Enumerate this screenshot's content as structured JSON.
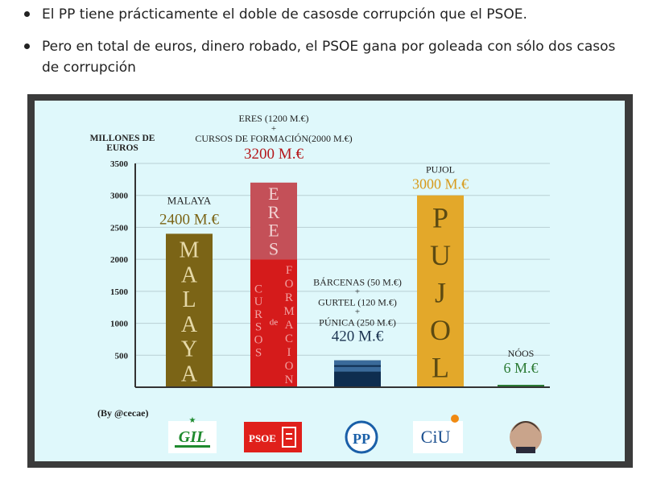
{
  "bullets": [
    "El PP tiene prácticamente el doble de casosde corrupción que el PSOE.",
    "Pero en total de euros, dinero robado, el PSOE gana por goleada con sólo dos casos de corrupción"
  ],
  "colors": {
    "malaya": "#7b6416",
    "eres": "#c45058",
    "cursos": "#d51b1b",
    "pp_dark": "#0e2d4f",
    "pp_light": "#3a6a9a",
    "pujol": "#e3a82a",
    "noos": "#2b7a34",
    "malaya_text": "#7b6416",
    "eres_text": "#b5181c",
    "pujol_text": "#d79a1a",
    "pp_text": "#1b3350",
    "noos_text": "#2b7a34"
  },
  "chart_data": {
    "type": "bar",
    "ylabel": "MILLONES DE EUROS",
    "ylim": [
      0,
      3500
    ],
    "yticks": [
      "3500",
      "3000",
      "2500",
      "2000",
      "1500",
      "1000",
      "500"
    ],
    "categories": [
      "GIL",
      "PSOE",
      "PP",
      "CiU",
      "Nóos"
    ],
    "values": [
      2400,
      3200,
      420,
      3000,
      6
    ],
    "stacks": {
      "psoe": [
        {
          "name": "CURSOS DE FORMACIÓN",
          "value": 2000
        },
        {
          "name": "ERES",
          "value": 1200
        }
      ]
    },
    "bars": [
      {
        "key": "malaya",
        "label": "MALAYA",
        "amount": "2400 M.€",
        "letters": [
          "M",
          "A",
          "L",
          "A",
          "Y",
          "A"
        ]
      },
      {
        "key": "psoe",
        "top_line1": "ERES (1200 M.€)",
        "plus": "+",
        "top_line2": "CURSOS DE FORMACIÓN(2000 M.€)",
        "amount": "3200 M.€",
        "eres_letters": [
          "E",
          "R",
          "E",
          "S"
        ],
        "cursos_letters": [
          "C",
          "U",
          "R",
          "S",
          "O",
          "S"
        ],
        "de": "de",
        "formacion_letters": [
          "F",
          "O",
          "R",
          "M",
          "A",
          "C",
          "I",
          "O",
          "N"
        ]
      },
      {
        "key": "pp",
        "line1": "BÁRCENAS (50 M.€)",
        "plus1": "+",
        "line2": "GURTEL (120 M.€)",
        "plus2": "+",
        "line3": "PÚNICA (250 M.€)",
        "amount": "420 M.€"
      },
      {
        "key": "pujol",
        "label": "PUJOL",
        "amount": "3000 M.€",
        "letters": [
          "P",
          "U",
          "J",
          "O",
          "L"
        ]
      },
      {
        "key": "noos",
        "label": "NÓOS",
        "amount": "6 M.€"
      }
    ],
    "credit": "(By @cecae)",
    "logos": {
      "gil": "GIL",
      "psoe": "PSOE",
      "pp": "PP",
      "ciu": "CiU"
    }
  }
}
